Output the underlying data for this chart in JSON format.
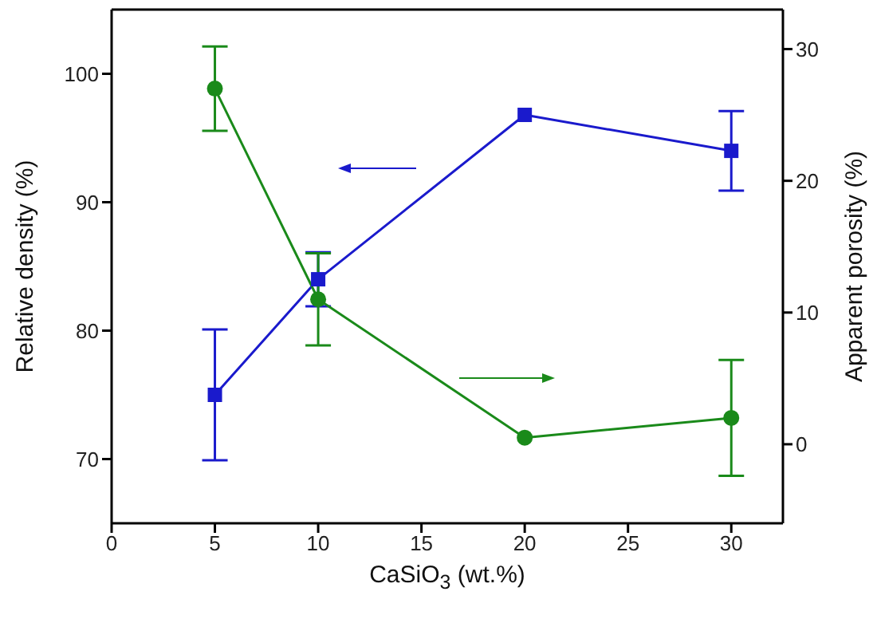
{
  "chart_data": {
    "type": "line",
    "xlabel": "CaSiO$_{3}$ (wt.%)",
    "ylabel": "Relative density (%)",
    "y2label": "Apparent porosity (%)",
    "x": [
      5,
      10,
      20,
      30
    ],
    "series": [
      {
        "color": "#1a1acc",
        "values": [
          75.0,
          84.0,
          96.8,
          94.0
        ],
        "errors": [
          5.1,
          2.1,
          null,
          3.1
        ],
        "marker": "square"
      },
      {
        "color": "#1a8a1a",
        "values": [
          27.0,
          11.0,
          0.5,
          2.0
        ],
        "errors": [
          3.2,
          3.5,
          null,
          4.4
        ],
        "marker": "circle",
        "axis": "y2"
      }
    ],
    "xlim": [
      0,
      32.5
    ],
    "xticks": [
      0,
      5,
      10,
      15,
      20,
      25,
      30
    ],
    "ylim": [
      65,
      105
    ],
    "yticks": [
      70,
      80,
      90,
      100
    ],
    "y2lim": [
      -6,
      33
    ],
    "y2ticks": [
      0,
      10,
      20,
      30
    ],
    "grid": false,
    "legend": false
  }
}
